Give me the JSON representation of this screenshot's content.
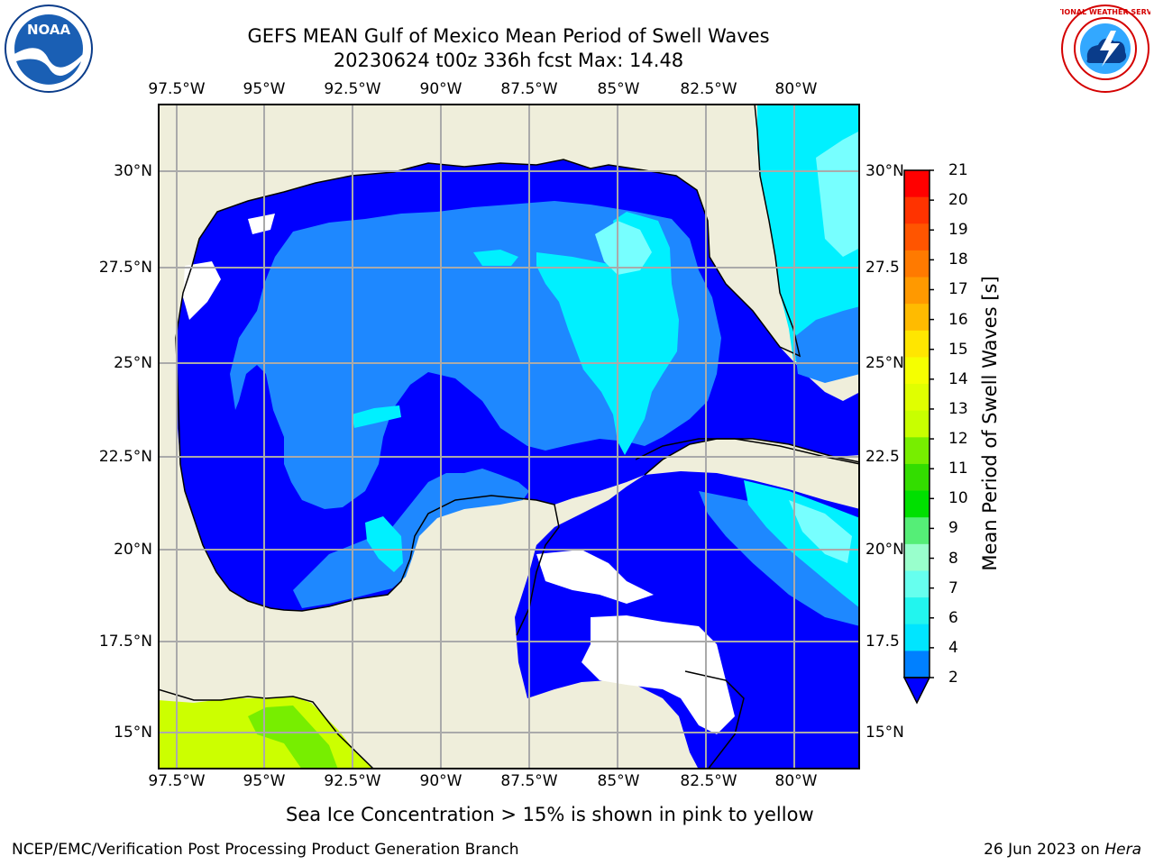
{
  "title": {
    "line1": "GEFS MEAN Gulf of Mexico Mean Period of Swell Waves",
    "line2": "20230624 t00z 336h fcst   Max: 14.48"
  },
  "axes": {
    "lon_ticks": [
      "97.5°W",
      "95°W",
      "92.5°W",
      "90°W",
      "87.5°W",
      "85°W",
      "82.5°W",
      "80°W"
    ],
    "lat_ticks_left": [
      "30°N",
      "27.5°N",
      "25°N",
      "22.5°N",
      "20°N",
      "17.5°N",
      "15°N"
    ],
    "lat_ticks_right": [
      "30°N",
      "27.5",
      "25°N",
      "22.5",
      "20°N",
      "17.5",
      "15°N"
    ]
  },
  "colorbar": {
    "label": "Mean Period of Swell Waves [s]",
    "ticks": [
      "21",
      "20",
      "19",
      "18",
      "17",
      "16",
      "15",
      "14",
      "13",
      "12",
      "11",
      "10",
      "9",
      "8",
      "7",
      "6",
      "4",
      "2"
    ],
    "colors": [
      "#ff0000",
      "#ff3300",
      "#ff5500",
      "#ff7a00",
      "#ff9900",
      "#ffbb00",
      "#ffe600",
      "#f5ff00",
      "#e0ff00",
      "#c8ff00",
      "#77ee00",
      "#33dd00",
      "#00e000",
      "#55ee77",
      "#99ffcc",
      "#66ffee",
      "#22f5ee",
      "#00e5ff",
      "#0080ff"
    ],
    "under_color": "#0000ff"
  },
  "note": "Sea Ice Concentration > 15% is shown in pink to yellow",
  "footer": {
    "credit": "NCEP/EMC/Verification Post Processing Product Generation Branch",
    "date_prefix": "26 Jun 2023 on ",
    "host": "Hera"
  },
  "logos": {
    "left": "NOAA",
    "right": "NATIONAL WEATHER SERVICE"
  },
  "colors": {
    "land": "#efeedb",
    "deep_blue": "#0000ff",
    "mid_blue": "#1e88ff",
    "cyan": "#00f0ff",
    "light_cyan": "#77ffff",
    "yellow_green": "#ccff00",
    "grid": "#aaaaaa"
  }
}
